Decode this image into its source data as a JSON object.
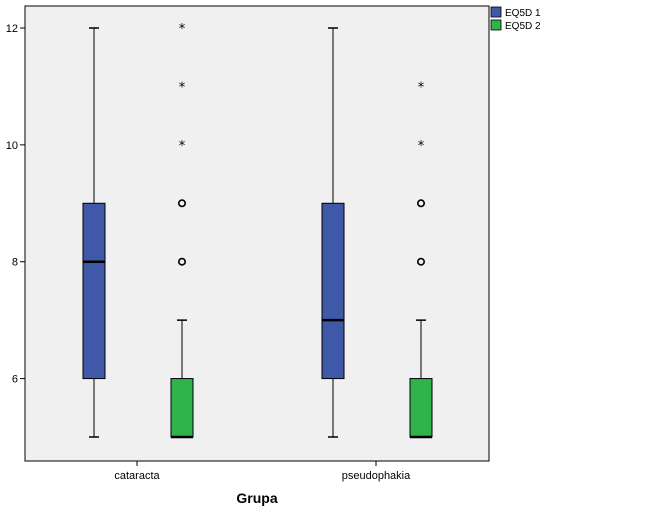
{
  "chart_data": {
    "type": "boxplot",
    "title": "",
    "xlabel": "Grupa",
    "ylabel": "",
    "ylim": [
      4.7,
      12.3
    ],
    "yticks": [
      6,
      8,
      10,
      12
    ],
    "categories": [
      "cataracta",
      "pseudophakia"
    ],
    "series": [
      {
        "name": "EQ5D 1",
        "color": "#3f58a8",
        "boxes": [
          {
            "category": "cataracta",
            "whisker_low": 5,
            "q1": 6,
            "median": 8,
            "q3": 9,
            "whisker_high": 12,
            "outliers": [],
            "extremes": []
          },
          {
            "category": "pseudophakia",
            "whisker_low": 5,
            "q1": 6,
            "median": 7,
            "q3": 9,
            "whisker_high": 12,
            "outliers": [],
            "extremes": []
          }
        ]
      },
      {
        "name": "EQ5D 2",
        "color": "#2fb34a",
        "boxes": [
          {
            "category": "cataracta",
            "whisker_low": 5,
            "q1": 5,
            "median": 5,
            "q3": 6,
            "whisker_high": 7,
            "outliers": [
              8,
              9
            ],
            "extremes": [
              10,
              11,
              12
            ]
          },
          {
            "category": "pseudophakia",
            "whisker_low": 5,
            "q1": 5,
            "median": 5,
            "q3": 6,
            "whisker_high": 7,
            "outliers": [
              8,
              9
            ],
            "extremes": [
              10,
              11
            ]
          }
        ]
      }
    ],
    "legend_position": "top-right",
    "background": "#f0f0f0"
  }
}
